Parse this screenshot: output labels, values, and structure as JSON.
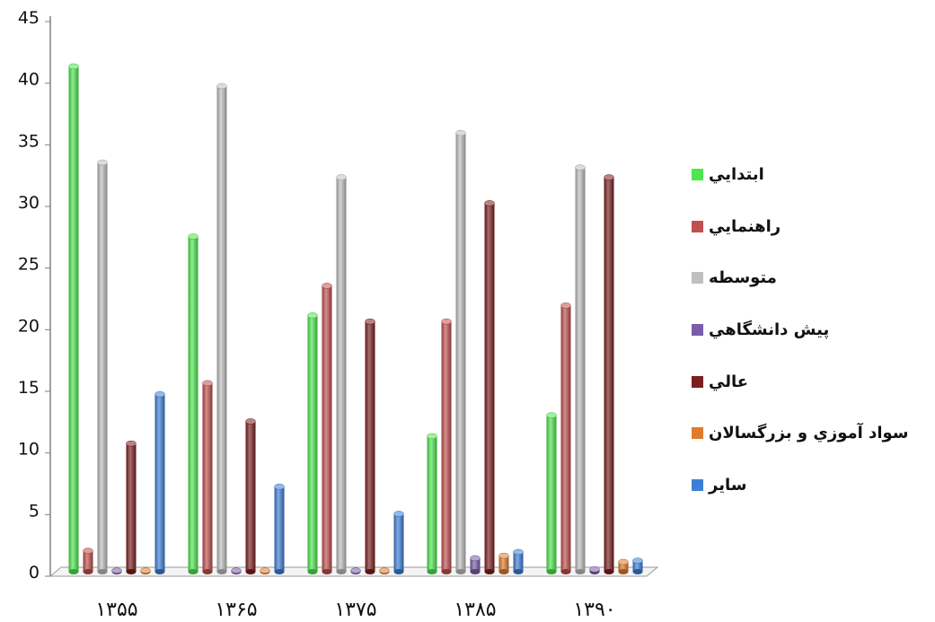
{
  "chart_data": {
    "type": "bar",
    "categories": [
      "۱۳۵۵",
      "۱۳۶۵",
      "۱۳۷۵",
      "۱۳۸۵",
      "۱۳۹۰"
    ],
    "ylim": [
      0,
      45
    ],
    "yticks": [
      0,
      5,
      10,
      15,
      20,
      25,
      30,
      35,
      40,
      45
    ],
    "legend_position": "right",
    "series": [
      {
        "name": "ابتدايي",
        "color": "#4ee64e",
        "values": [
          41.0,
          27.2,
          20.8,
          11.0,
          12.7
        ]
      },
      {
        "name": "راهنمايي",
        "color": "#c0504d",
        "values": [
          1.7,
          15.3,
          23.2,
          20.3,
          21.6
        ]
      },
      {
        "name": "متوسطه",
        "color": "#bfbfbf",
        "values": [
          33.2,
          39.4,
          32.0,
          35.6,
          32.8
        ]
      },
      {
        "name": "پيش دانشگاهي",
        "color": "#7a5ca8",
        "values": [
          0.1,
          0.1,
          0.1,
          1.1,
          0.2
        ]
      },
      {
        "name": "عالي",
        "color": "#7b1f1f",
        "values": [
          10.4,
          12.2,
          20.3,
          29.9,
          32.0
        ]
      },
      {
        "name": "سواد آموزي و بزرگسالان",
        "color": "#e07b2e",
        "values": [
          0.1,
          0.1,
          0.1,
          1.3,
          0.8
        ]
      },
      {
        "name": "ساير",
        "color": "#3d7fd6",
        "values": [
          14.4,
          6.9,
          4.7,
          1.6,
          0.9
        ]
      }
    ]
  }
}
